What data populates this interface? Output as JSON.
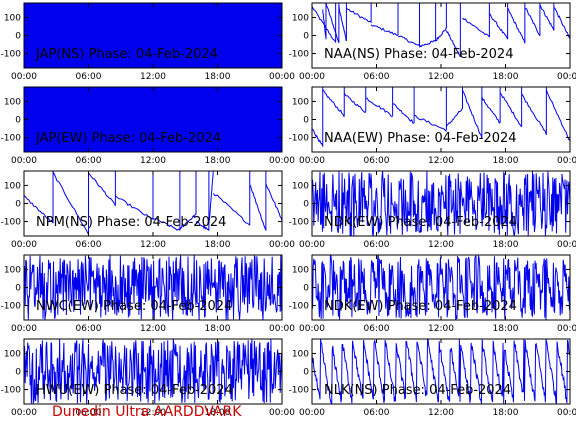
{
  "footer_text": "Dunedin Ultra AARDDVARK",
  "colors": {
    "trace": "#0000ee",
    "axes": "#000000",
    "footer": "#cc0000"
  },
  "chart_data": [
    {
      "type": "line",
      "title": "JAP(NS) Phase: 04-Feb-2024",
      "xticks": [
        "00:00",
        "06:00",
        "12:00",
        "18:00",
        "00:00"
      ],
      "yticks": [
        "100",
        "0",
        "-100"
      ],
      "ylim": [
        -180,
        180
      ],
      "xlim": [
        0,
        24
      ],
      "style": "saturated",
      "series": [
        {
          "x": [
            0,
            24
          ],
          "y": [
            0,
            0
          ]
        }
      ]
    },
    {
      "type": "line",
      "title": "NAA(NS) Phase: 04-Feb-2024",
      "xticks": [
        "00:00",
        "06:00",
        "12:00",
        "18:00",
        "00:00"
      ],
      "yticks": [
        "100",
        "0",
        "-100"
      ],
      "ylim": [
        -180,
        180
      ],
      "xlim": [
        0,
        24
      ],
      "style": "sawtooth",
      "sawtooth": [
        [
          0,
          2.2,
          160,
          -40
        ],
        [
          1,
          1.3,
          140,
          -20
        ],
        [
          1.3,
          2.5,
          180,
          -40
        ],
        [
          2.5,
          3.2,
          160,
          -30
        ],
        [
          3.2,
          5.5,
          150,
          70
        ],
        [
          5.5,
          8,
          60,
          0
        ],
        [
          8,
          10,
          0,
          -60
        ],
        [
          10,
          11.5,
          -60,
          -30
        ],
        [
          11.5,
          12.5,
          -30,
          40
        ],
        [
          12.5,
          13.8,
          30,
          -120
        ],
        [
          14,
          16.5,
          100,
          -10
        ],
        [
          16.5,
          18.2,
          120,
          -20
        ],
        [
          18.2,
          19.8,
          150,
          -40
        ],
        [
          19.8,
          21.2,
          160,
          0
        ],
        [
          21.2,
          22.5,
          170,
          30
        ],
        [
          22.5,
          24,
          160,
          -20
        ]
      ]
    },
    {
      "type": "line",
      "title": "JAP(EW) Phase: 04-Feb-2024",
      "xticks": [
        "00:00",
        "06:00",
        "12:00",
        "18:00",
        "00:00"
      ],
      "yticks": [
        "100",
        "0",
        "-100"
      ],
      "ylim": [
        -180,
        180
      ],
      "xlim": [
        0,
        24
      ],
      "style": "saturated",
      "series": [
        {
          "x": [
            0,
            24
          ],
          "y": [
            0,
            0
          ]
        }
      ]
    },
    {
      "type": "line",
      "title": "NAA(EW) Phase: 04-Feb-2024",
      "xticks": [
        "00:00",
        "06:00",
        "12:00",
        "18:00",
        "00:00"
      ],
      "yticks": [
        "100",
        "0",
        "-100"
      ],
      "ylim": [
        -180,
        180
      ],
      "xlim": [
        0,
        24
      ],
      "style": "sawtooth",
      "sawtooth": [
        [
          0,
          1,
          -50,
          -150
        ],
        [
          1,
          3,
          160,
          20
        ],
        [
          3,
          5,
          140,
          40
        ],
        [
          5,
          7.5,
          120,
          20
        ],
        [
          7.5,
          9.5,
          90,
          -20
        ],
        [
          9.5,
          12.5,
          20,
          -60
        ],
        [
          12.5,
          14,
          -40,
          60
        ],
        [
          14,
          15.8,
          160,
          -100
        ],
        [
          15.8,
          17.5,
          120,
          -20
        ],
        [
          17.5,
          19.5,
          150,
          -40
        ],
        [
          19.5,
          21.8,
          140,
          -80
        ],
        [
          21.8,
          24,
          160,
          -120
        ]
      ]
    },
    {
      "type": "line",
      "title": "NPM(NS) Phase: 04-Feb-2024",
      "xticks": [
        "00:00",
        "06:00",
        "12:00",
        "18:00",
        "00:00"
      ],
      "yticks": [
        "100",
        "0",
        "-100"
      ],
      "ylim": [
        -180,
        180
      ],
      "xlim": [
        0,
        24
      ],
      "style": "sawtooth",
      "sawtooth": [
        [
          0,
          2.7,
          40,
          -110
        ],
        [
          2.7,
          6,
          170,
          -170
        ],
        [
          6,
          8.5,
          170,
          -10
        ],
        [
          8.5,
          12,
          40,
          -90
        ],
        [
          12,
          14.5,
          -80,
          -150
        ],
        [
          14.5,
          16,
          -140,
          -60
        ],
        [
          16,
          17.2,
          -100,
          -150
        ],
        [
          17.2,
          17.6,
          -120,
          170
        ],
        [
          17.6,
          21,
          60,
          -120
        ],
        [
          21,
          22.5,
          110,
          -150
        ],
        [
          22.5,
          24,
          110,
          -90
        ]
      ]
    },
    {
      "type": "line",
      "title": "NDK(EW) Phase: 04-Feb-2024",
      "xticks": [
        "00:00",
        "06:00",
        "12:00",
        "18:00",
        "00:00"
      ],
      "yticks": [
        "100",
        "0",
        "-100"
      ],
      "ylim": [
        -180,
        180
      ],
      "xlim": [
        0,
        24
      ],
      "style": "noisy",
      "noise_level": 0.7,
      "period_hours": 0.9
    },
    {
      "type": "line",
      "title": "NWC(EW) Phase: 04-Feb-2024",
      "xticks": [
        "00:00",
        "06:00",
        "12:00",
        "18:00",
        "00:00"
      ],
      "yticks": [
        "100",
        "0",
        "-100"
      ],
      "ylim": [
        -180,
        180
      ],
      "xlim": [
        0,
        24
      ],
      "style": "noisy",
      "noise_level": 0.9,
      "period_hours": 0.7
    },
    {
      "type": "line",
      "title": "NDK(EW) Phase: 04-Feb-2024",
      "xticks": [
        "00:00",
        "06:00",
        "12:00",
        "18:00",
        "00:00"
      ],
      "yticks": [
        "100",
        "0",
        "-100"
      ],
      "ylim": [
        -180,
        180
      ],
      "xlim": [
        0,
        24
      ],
      "style": "noisy",
      "noise_level": 0.55,
      "period_hours": 0.9
    },
    {
      "type": "line",
      "title": "HWU(EW) Phase: 04-Feb-2024",
      "xticks": [
        "00:00",
        "06:00",
        "12:00",
        "18:00",
        "00:00"
      ],
      "yticks": [
        "100",
        "0",
        "-100"
      ],
      "ylim": [
        -180,
        180
      ],
      "xlim": [
        0,
        24
      ],
      "style": "noisy",
      "noise_level": 0.95,
      "period_hours": 0.6
    },
    {
      "type": "line",
      "title": "NLK(NS) Phase: 04-Feb-2024",
      "xticks": [
        "00:00",
        "06:00",
        "12:00",
        "18:00",
        "00:00"
      ],
      "yticks": [
        "100",
        "0",
        "-100"
      ],
      "ylim": [
        -180,
        180
      ],
      "xlim": [
        0,
        24
      ],
      "style": "noisy",
      "noise_level": 0.15,
      "period_hours": 1.0
    }
  ]
}
